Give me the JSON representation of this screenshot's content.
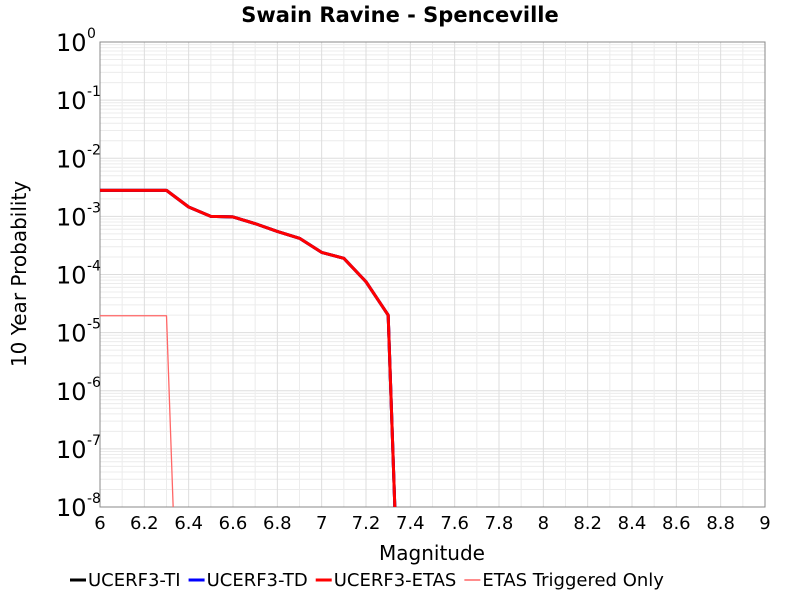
{
  "chart_data": {
    "type": "line",
    "title": "Swain Ravine - Spenceville",
    "xlabel": "Magnitude",
    "ylabel": "10 Year Probability",
    "xlim": [
      6,
      9
    ],
    "ylim": [
      1e-08,
      1
    ],
    "yscale": "log",
    "grid": true,
    "legend_position": "bottom",
    "x_ticks": [
      "6",
      "6.2",
      "6.4",
      "6.6",
      "6.8",
      "7",
      "7.2",
      "7.4",
      "7.6",
      "7.8",
      "8",
      "8.2",
      "8.4",
      "8.6",
      "8.8",
      "9"
    ],
    "y_ticks": [
      {
        "base": "10",
        "exp": "0"
      },
      {
        "base": "10",
        "exp": "-1"
      },
      {
        "base": "10",
        "exp": "-2"
      },
      {
        "base": "10",
        "exp": "-3"
      },
      {
        "base": "10",
        "exp": "-4"
      },
      {
        "base": "10",
        "exp": "-5"
      },
      {
        "base": "10",
        "exp": "-6"
      },
      {
        "base": "10",
        "exp": "-7"
      },
      {
        "base": "10",
        "exp": "-8"
      }
    ],
    "series": [
      {
        "name": "UCERF3-TI",
        "color": "#000000",
        "points": [
          [
            6.0,
            0.0028
          ],
          [
            6.3,
            0.0028
          ],
          [
            6.4,
            0.00145
          ],
          [
            6.5,
            0.001
          ],
          [
            6.6,
            0.00098
          ],
          [
            6.7,
            0.00075
          ],
          [
            6.8,
            0.00055
          ],
          [
            6.9,
            0.00042
          ],
          [
            7.0,
            0.00024
          ],
          [
            7.1,
            0.00019
          ],
          [
            7.2,
            7.5e-05
          ],
          [
            7.3,
            2e-05
          ],
          [
            7.33,
            1e-08
          ]
        ]
      },
      {
        "name": "UCERF3-TD",
        "color": "#0000ff",
        "points": [
          [
            6.0,
            0.0028
          ],
          [
            6.3,
            0.0028
          ],
          [
            6.4,
            0.00145
          ],
          [
            6.5,
            0.001
          ],
          [
            6.6,
            0.00098
          ],
          [
            6.7,
            0.00075
          ],
          [
            6.8,
            0.00055
          ],
          [
            6.9,
            0.00042
          ],
          [
            7.0,
            0.00024
          ],
          [
            7.1,
            0.00019
          ],
          [
            7.2,
            7.5e-05
          ],
          [
            7.3,
            2e-05
          ],
          [
            7.33,
            1e-08
          ]
        ]
      },
      {
        "name": "UCERF3-ETAS",
        "color": "#ff0000",
        "points": [
          [
            6.0,
            0.0028
          ],
          [
            6.3,
            0.0028
          ],
          [
            6.4,
            0.00145
          ],
          [
            6.5,
            0.001
          ],
          [
            6.6,
            0.00098
          ],
          [
            6.7,
            0.00075
          ],
          [
            6.8,
            0.00055
          ],
          [
            6.9,
            0.00042
          ],
          [
            7.0,
            0.00024
          ],
          [
            7.1,
            0.00019
          ],
          [
            7.2,
            7.5e-05
          ],
          [
            7.3,
            2e-05
          ],
          [
            7.33,
            1e-08
          ]
        ]
      },
      {
        "name": "ETAS Triggered Only",
        "color": "#ff6666",
        "points": [
          [
            6.0,
            1.95e-05
          ],
          [
            6.3,
            1.95e-05
          ],
          [
            6.33,
            1e-08
          ]
        ]
      }
    ]
  }
}
